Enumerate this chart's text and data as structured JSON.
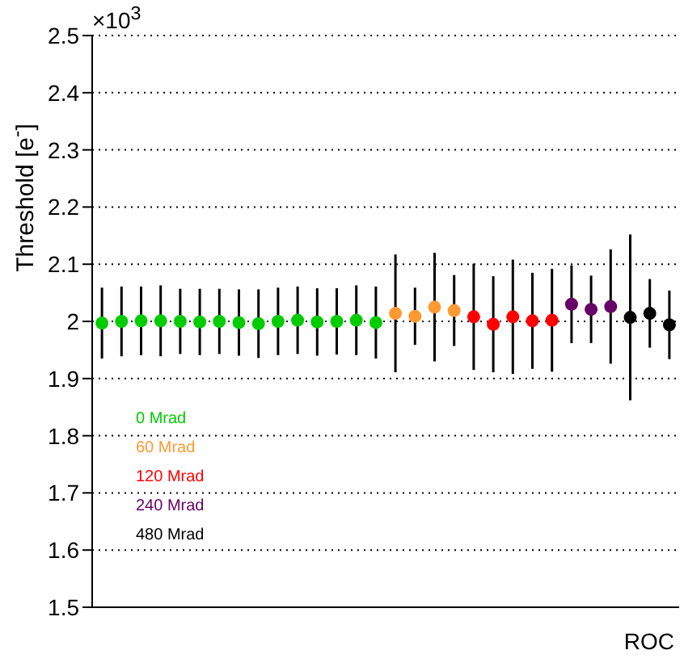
{
  "chart_data": {
    "type": "scatter",
    "ylabel": "Threshold [e$^{-}$]",
    "xlabel": "ROC",
    "annotations": [
      "×10$^{3}$"
    ],
    "categories": [
      null,
      null,
      null,
      null,
      null,
      null,
      null,
      null,
      null,
      null,
      null,
      null,
      null,
      null,
      null,
      null,
      null,
      null,
      null,
      null,
      null,
      null,
      null,
      null,
      null,
      null,
      null,
      null,
      null,
      null
    ],
    "ylim": [
      1.5,
      2.5
    ],
    "yticks": [
      1.5,
      1.6,
      1.7,
      1.8,
      1.9,
      2,
      2.1,
      2.2,
      2.3,
      2.4,
      2.5
    ],
    "grid": "y",
    "tick_labels": "y",
    "legend": "bottom left",
    "marker": "circle",
    "series": [
      {
        "name": "0 Mrad",
        "color": "#00cc00",
        "values": [
          1.997,
          2.0,
          2.001,
          2.001,
          2.0,
          1.999,
          2.0,
          1.998,
          1.996,
          2.0,
          2.002,
          1.999,
          2.0,
          2.002,
          1.998,
          null,
          null,
          null,
          null,
          null,
          null,
          null,
          null,
          null,
          null,
          null,
          null,
          null,
          null,
          null
        ],
        "errors": [
          0.062,
          0.061,
          0.06,
          0.062,
          0.057,
          0.058,
          0.057,
          0.058,
          0.06,
          0.059,
          0.059,
          0.059,
          0.058,
          0.061,
          0.063,
          null,
          null,
          null,
          null,
          null,
          null,
          null,
          null,
          null,
          null,
          null,
          null,
          null,
          null,
          null
        ]
      },
      {
        "name": "60 Mrad",
        "color": "#ff9933",
        "values": [
          null,
          null,
          null,
          null,
          null,
          null,
          null,
          null,
          null,
          null,
          null,
          null,
          null,
          null,
          null,
          2.014,
          2.009,
          2.025,
          2.019,
          null,
          null,
          null,
          null,
          null,
          null,
          null,
          null,
          null,
          null,
          null
        ],
        "errors": [
          null,
          null,
          null,
          null,
          null,
          null,
          null,
          null,
          null,
          null,
          null,
          null,
          null,
          null,
          null,
          0.103,
          0.05,
          0.095,
          0.062,
          null,
          null,
          null,
          null,
          null,
          null,
          null,
          null,
          null,
          null,
          null
        ]
      },
      {
        "name": "120 Mrad",
        "color": "#ff0000",
        "values": [
          null,
          null,
          null,
          null,
          null,
          null,
          null,
          null,
          null,
          null,
          null,
          null,
          null,
          null,
          null,
          null,
          null,
          null,
          null,
          2.008,
          1.995,
          2.008,
          2.001,
          2.002,
          null,
          null,
          null,
          null,
          null,
          null
        ],
        "errors": [
          null,
          null,
          null,
          null,
          null,
          null,
          null,
          null,
          null,
          null,
          null,
          null,
          null,
          null,
          null,
          null,
          null,
          null,
          null,
          0.093,
          0.084,
          0.1,
          0.084,
          0.09,
          null,
          null,
          null,
          null,
          null,
          null
        ]
      },
      {
        "name": "240 Mrad",
        "color": "#660066",
        "values": [
          null,
          null,
          null,
          null,
          null,
          null,
          null,
          null,
          null,
          null,
          null,
          null,
          null,
          null,
          null,
          null,
          null,
          null,
          null,
          null,
          null,
          null,
          null,
          null,
          2.03,
          2.021,
          2.026,
          null,
          null,
          null
        ],
        "errors": [
          null,
          null,
          null,
          null,
          null,
          null,
          null,
          null,
          null,
          null,
          null,
          null,
          null,
          null,
          null,
          null,
          null,
          null,
          null,
          null,
          null,
          null,
          null,
          null,
          0.068,
          0.059,
          0.1,
          null,
          null,
          null
        ]
      },
      {
        "name": "480 Mrad",
        "color": "#000000",
        "values": [
          null,
          null,
          null,
          null,
          null,
          null,
          null,
          null,
          null,
          null,
          null,
          null,
          null,
          null,
          null,
          null,
          null,
          null,
          null,
          null,
          null,
          null,
          null,
          null,
          null,
          null,
          null,
          2.007,
          2.014,
          1.994
        ],
        "errors": [
          null,
          null,
          null,
          null,
          null,
          null,
          null,
          null,
          null,
          null,
          null,
          null,
          null,
          null,
          null,
          null,
          null,
          null,
          null,
          null,
          null,
          null,
          null,
          null,
          null,
          null,
          null,
          0.145,
          0.06,
          0.06
        ]
      }
    ]
  }
}
